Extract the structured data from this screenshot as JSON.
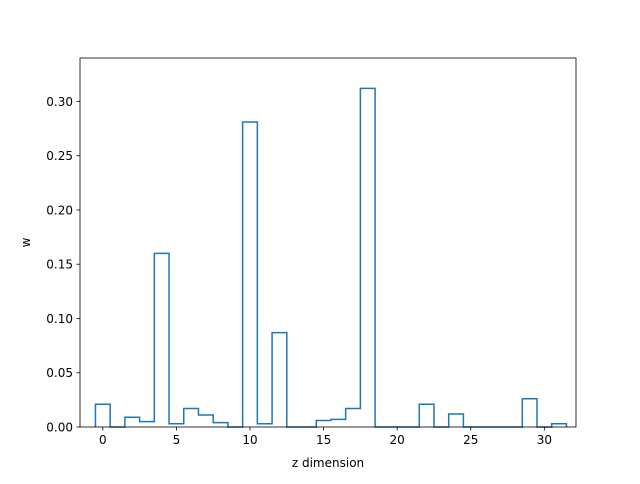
{
  "chart_data": {
    "type": "bar",
    "style": "step-outline",
    "xlabel": "z dimension",
    "ylabel": "w",
    "xlim": [
      -1.55,
      32.15
    ],
    "ylim": [
      0,
      0.34
    ],
    "xticks": [
      0,
      5,
      10,
      15,
      20,
      25,
      30
    ],
    "xtick_labels": [
      "0",
      "5",
      "10",
      "15",
      "20",
      "25",
      "30"
    ],
    "yticks": [
      0,
      0.05,
      0.1,
      0.15,
      0.2,
      0.25,
      0.3
    ],
    "ytick_labels": [
      "0.00",
      "0.05",
      "0.10",
      "0.15",
      "0.20",
      "0.25",
      "0.30"
    ],
    "grid": false,
    "color": "#1f77b4",
    "x": [
      0,
      1,
      2,
      3,
      4,
      5,
      6,
      7,
      8,
      9,
      10,
      11,
      12,
      13,
      14,
      15,
      16,
      17,
      18,
      19,
      20,
      21,
      22,
      23,
      24,
      25,
      26,
      27,
      28,
      29,
      30,
      31
    ],
    "values": [
      0.021,
      0.0,
      0.009,
      0.005,
      0.16,
      0.003,
      0.017,
      0.011,
      0.004,
      0.0,
      0.281,
      0.003,
      0.087,
      0.0,
      0.0,
      0.006,
      0.007,
      0.017,
      0.312,
      0.0,
      0.0,
      0.0,
      0.021,
      0.0,
      0.012,
      0.0,
      0.0,
      0.0,
      0.0,
      0.026,
      0.0,
      0.003
    ]
  }
}
